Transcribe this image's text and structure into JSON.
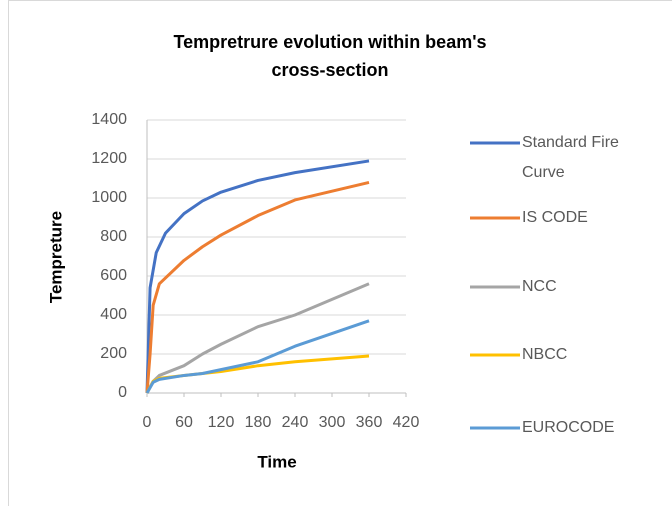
{
  "chart_data": {
    "type": "line",
    "title": "Tempretrure evolution within beam's cross-section",
    "xlabel": "Time",
    "ylabel": "Tempreture",
    "xlim": [
      0,
      420
    ],
    "xticks": [
      0,
      60,
      120,
      180,
      240,
      300,
      360,
      420
    ],
    "ylim": [
      0,
      1400
    ],
    "yticks": [
      0,
      200,
      400,
      600,
      800,
      1000,
      1200,
      1400
    ],
    "grid": true,
    "legend": "right",
    "series": [
      {
        "name": "Standard Fire Curve",
        "color": "#4472c4",
        "x": [
          0,
          5,
          15,
          30,
          60,
          90,
          120,
          180,
          240,
          360
        ],
        "values": [
          0,
          540,
          720,
          820,
          920,
          985,
          1030,
          1090,
          1130,
          1190
        ]
      },
      {
        "name": "IS CODE",
        "color": "#ed7d31",
        "x": [
          0,
          5,
          10,
          20,
          60,
          90,
          120,
          180,
          240,
          360
        ],
        "values": [
          0,
          200,
          450,
          560,
          680,
          750,
          810,
          910,
          990,
          1080
        ]
      },
      {
        "name": "NCC",
        "color": "#a5a5a5",
        "x": [
          0,
          10,
          20,
          60,
          90,
          120,
          180,
          240,
          360
        ],
        "values": [
          0,
          60,
          90,
          140,
          200,
          250,
          340,
          400,
          560
        ]
      },
      {
        "name": "NBCC",
        "color": "#ffc000",
        "x": [
          0,
          10,
          20,
          60,
          120,
          180,
          240,
          360
        ],
        "values": [
          0,
          60,
          75,
          90,
          110,
          140,
          160,
          190
        ]
      },
      {
        "name": "EUROCODE",
        "color": "#5b9bd5",
        "x": [
          0,
          10,
          20,
          60,
          90,
          180,
          240,
          360
        ],
        "values": [
          0,
          55,
          70,
          90,
          100,
          160,
          240,
          370
        ]
      }
    ]
  }
}
